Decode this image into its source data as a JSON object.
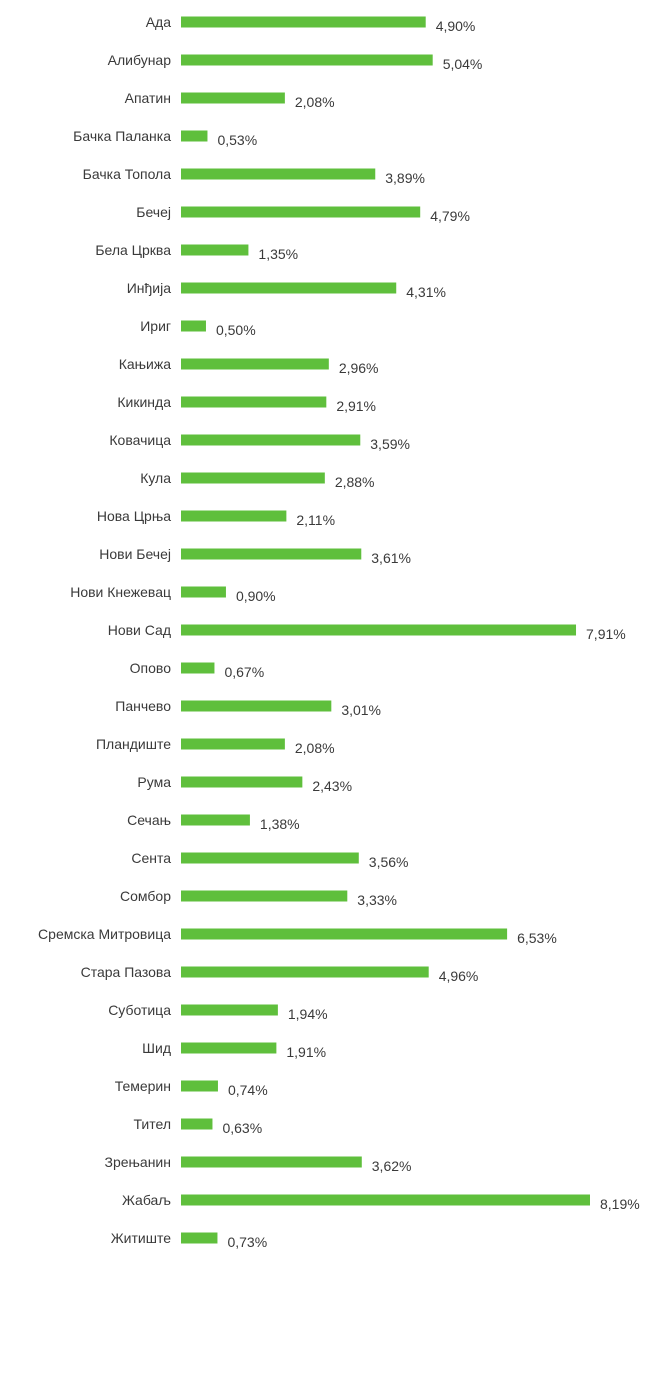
{
  "chart_data": {
    "type": "bar",
    "orientation": "horizontal",
    "colors": {
      "bar": "#5fbf3c",
      "text": "#3a3a3a",
      "background": "#ffffff"
    },
    "grid": false,
    "legend": "none",
    "xlim": [
      0,
      8.19
    ],
    "categories": [
      "Ада",
      "Алибунар",
      "Апатин",
      "Бачка Паланка",
      "Бачка Топола",
      "Бечеј",
      "Бела Црква",
      "Инђија",
      "Ириг",
      "Кањижа",
      "Кикинда",
      "Ковачица",
      "Кула",
      "Нова Црња",
      "Нови Бечеј",
      "Нови Кнежевац",
      "Нови Сад",
      "Опово",
      "Панчево",
      "Пландиште",
      "Рума",
      "Сечањ",
      "Сента",
      "Сомбор",
      "Сремска Митровица",
      "Стара Пазова",
      "Суботица",
      "Шид",
      "Темерин",
      "Тител",
      "Зрењанин",
      "Жабаљ",
      "Житиште"
    ],
    "values": [
      4.9,
      5.04,
      2.08,
      0.53,
      3.89,
      4.79,
      1.35,
      4.31,
      0.5,
      2.96,
      2.91,
      3.59,
      2.88,
      2.11,
      3.61,
      0.9,
      7.91,
      0.67,
      3.01,
      2.08,
      2.43,
      1.38,
      3.56,
      3.33,
      6.53,
      4.96,
      1.94,
      1.91,
      0.74,
      0.63,
      3.62,
      8.19,
      0.73
    ],
    "value_labels": [
      "4,90%",
      "5,04%",
      "2,08%",
      "0,53%",
      "3,89%",
      "4,79%",
      "1,35%",
      "4,31%",
      "0,50%",
      "2,96%",
      "2,91%",
      "3,59%",
      "2,88%",
      "2,11%",
      "3,61%",
      "0,90%",
      "7,91%",
      "0,67%",
      "3,01%",
      "2,08%",
      "2,43%",
      "1,38%",
      "3,56%",
      "3,33%",
      "6,53%",
      "4,96%",
      "1,94%",
      "1,91%",
      "0,74%",
      "0,63%",
      "3,62%",
      "8,19%",
      "0,73%"
    ]
  }
}
